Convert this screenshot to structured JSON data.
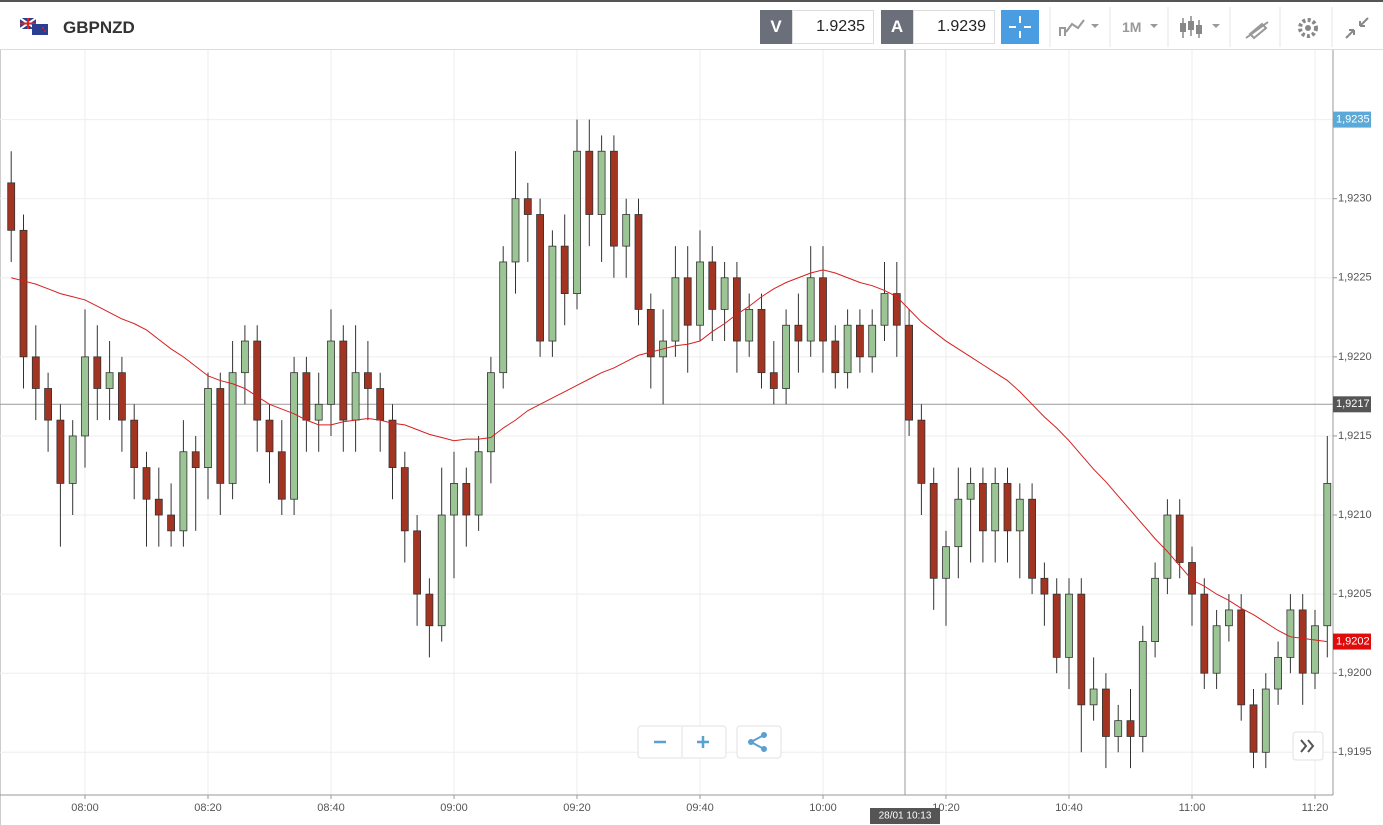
{
  "header": {
    "symbol": "GBPNZD",
    "sell": {
      "label": "V",
      "price": "1.9235"
    },
    "buy": {
      "label": "A",
      "price": "1.9239"
    },
    "timeframe": "1M"
  },
  "chart_data": {
    "type": "candlestick",
    "categories": [
      null,
      null,
      null,
      null,
      null,
      null,
      "08:00",
      null,
      null,
      null,
      null,
      null,
      null,
      null,
      null,
      null,
      "08:20",
      null,
      null,
      null,
      null,
      null,
      null,
      null,
      null,
      null,
      "08:40",
      null,
      null,
      null,
      null,
      null,
      null,
      null,
      null,
      null,
      "09:00",
      null,
      null,
      null,
      null,
      null,
      null,
      null,
      null,
      null,
      "09:20",
      null,
      null,
      null,
      null,
      null,
      null,
      null,
      null,
      null,
      "09:40",
      null,
      null,
      null,
      null,
      null,
      null,
      null,
      null,
      null,
      "10:00",
      null,
      null,
      null,
      null,
      null,
      null,
      null,
      null,
      null,
      "10:20",
      null,
      null,
      null,
      null,
      null,
      null,
      null,
      null,
      null,
      "10:40",
      null,
      null,
      null,
      null,
      null,
      null,
      null,
      null,
      null,
      "11:00",
      null,
      null,
      null,
      null,
      null,
      null,
      null,
      null,
      null,
      "11:20",
      null
    ],
    "open": [
      1.9231,
      1.9228,
      1.922,
      1.9218,
      1.9216,
      1.9212,
      1.9215,
      1.922,
      1.9218,
      1.9219,
      1.9216,
      1.9213,
      1.9211,
      1.921,
      1.9209,
      1.9214,
      1.9213,
      1.9218,
      1.9212,
      1.9219,
      1.9221,
      1.9216,
      1.9214,
      1.9211,
      1.9219,
      1.9216,
      1.9217,
      1.9221,
      1.9216,
      1.9219,
      1.9218,
      1.9216,
      1.9213,
      1.9209,
      1.9205,
      1.9203,
      1.921,
      1.9212,
      1.921,
      1.9214,
      1.9219,
      1.9226,
      1.923,
      1.9229,
      1.9221,
      1.9227,
      1.9224,
      1.9233,
      1.9229,
      1.9233,
      1.9227,
      1.9229,
      1.9223,
      1.922,
      1.9221,
      1.9225,
      1.9222,
      1.9226,
      1.9223,
      1.9225,
      1.9221,
      1.9223,
      1.9219,
      1.9218,
      1.9222,
      1.9221,
      1.9225,
      1.9221,
      1.9219,
      1.9222,
      1.922,
      1.9222,
      1.9224,
      1.9222,
      1.9216,
      1.9212,
      1.9206,
      1.9208,
      1.9211,
      1.9212,
      1.9209,
      1.9212,
      1.9209,
      1.9211,
      1.9206,
      1.9205,
      1.9201,
      1.9205,
      1.9198,
      1.9199,
      1.9196,
      1.9197,
      1.9196,
      1.9202,
      1.9206,
      1.921,
      1.9207,
      1.9205,
      1.92,
      1.9203,
      1.9204,
      1.9198,
      1.9195,
      1.9199,
      1.9201,
      1.9204,
      1.92,
      1.9203
    ],
    "high": [
      1.9233,
      1.9229,
      1.9222,
      1.9219,
      1.9217,
      1.9216,
      1.9223,
      1.9222,
      1.9221,
      1.922,
      1.9217,
      1.9214,
      1.9213,
      1.9212,
      1.9216,
      1.9215,
      1.9219,
      1.9219,
      1.9221,
      1.9222,
      1.9222,
      1.9217,
      1.9216,
      1.922,
      1.922,
      1.9219,
      1.9223,
      1.9222,
      1.9222,
      1.9221,
      1.9219,
      1.9217,
      1.9214,
      1.921,
      1.9206,
      1.9213,
      1.9214,
      1.9213,
      1.9215,
      1.922,
      1.9227,
      1.9233,
      1.9231,
      1.923,
      1.9228,
      1.9229,
      1.9235,
      1.9235,
      1.9234,
      1.9234,
      1.923,
      1.923,
      1.9224,
      1.9223,
      1.9227,
      1.9227,
      1.9228,
      1.9227,
      1.9226,
      1.9226,
      1.9224,
      1.9224,
      1.9221,
      1.9223,
      1.9224,
      1.9227,
      1.9227,
      1.9222,
      1.9223,
      1.9223,
      1.9223,
      1.9226,
      1.9226,
      1.9223,
      1.9217,
      1.9213,
      1.9209,
      1.9213,
      1.9213,
      1.9213,
      1.9213,
      1.9213,
      1.9212,
      1.9212,
      1.9207,
      1.9206,
      1.9206,
      1.9206,
      1.9201,
      1.92,
      1.9198,
      1.9199,
      1.9203,
      1.9207,
      1.9211,
      1.9211,
      1.9208,
      1.9206,
      1.9204,
      1.9205,
      1.9205,
      1.9199,
      1.92,
      1.9202,
      1.9205,
      1.9205,
      1.9204,
      1.9215
    ],
    "low": [
      1.9226,
      1.9218,
      1.9216,
      1.9214,
      1.9208,
      1.921,
      1.9213,
      1.9216,
      1.9216,
      1.9214,
      1.9211,
      1.9208,
      1.9208,
      1.9208,
      1.9208,
      1.9209,
      1.9211,
      1.921,
      1.9211,
      1.9217,
      1.9214,
      1.9212,
      1.921,
      1.921,
      1.9214,
      1.9214,
      1.9215,
      1.9214,
      1.9214,
      1.9216,
      1.9214,
      1.9211,
      1.9207,
      1.9203,
      1.9201,
      1.9202,
      1.9206,
      1.9208,
      1.9209,
      1.9212,
      1.9218,
      1.9224,
      1.9226,
      1.922,
      1.922,
      1.9222,
      1.9223,
      1.9227,
      1.9226,
      1.9225,
      1.9225,
      1.9222,
      1.9218,
      1.9217,
      1.922,
      1.9219,
      1.9221,
      1.9221,
      1.9221,
      1.9219,
      1.922,
      1.9218,
      1.9217,
      1.9217,
      1.9219,
      1.922,
      1.9219,
      1.9218,
      1.9218,
      1.9219,
      1.9219,
      1.9221,
      1.922,
      1.9215,
      1.921,
      1.9204,
      1.9203,
      1.9206,
      1.9207,
      1.9207,
      1.9207,
      1.9207,
      1.9206,
      1.9205,
      1.9203,
      1.92,
      1.9199,
      1.9195,
      1.9197,
      1.9194,
      1.9195,
      1.9194,
      1.9195,
      1.9201,
      1.9205,
      1.9206,
      1.9203,
      1.9199,
      1.9199,
      1.9202,
      1.9197,
      1.9194,
      1.9194,
      1.9198,
      1.92,
      1.9198,
      1.9199,
      1.9201
    ],
    "close": [
      1.9228,
      1.922,
      1.9218,
      1.9216,
      1.9212,
      1.9215,
      1.922,
      1.9218,
      1.9219,
      1.9216,
      1.9213,
      1.9211,
      1.921,
      1.9209,
      1.9214,
      1.9213,
      1.9218,
      1.9212,
      1.9219,
      1.9221,
      1.9216,
      1.9214,
      1.9211,
      1.9219,
      1.9216,
      1.9217,
      1.9221,
      1.9216,
      1.9219,
      1.9218,
      1.9216,
      1.9213,
      1.9209,
      1.9205,
      1.9203,
      1.921,
      1.9212,
      1.921,
      1.9214,
      1.9219,
      1.9226,
      1.923,
      1.9229,
      1.9221,
      1.9227,
      1.9224,
      1.9233,
      1.9229,
      1.9233,
      1.9227,
      1.9229,
      1.9223,
      1.922,
      1.9221,
      1.9225,
      1.9222,
      1.9226,
      1.9223,
      1.9225,
      1.9221,
      1.9223,
      1.9219,
      1.9218,
      1.9222,
      1.9221,
      1.9225,
      1.9221,
      1.9219,
      1.9222,
      1.922,
      1.9222,
      1.9224,
      1.9222,
      1.9216,
      1.9212,
      1.9206,
      1.9208,
      1.9211,
      1.9212,
      1.9209,
      1.9212,
      1.9209,
      1.9211,
      1.9206,
      1.9205,
      1.9201,
      1.9205,
      1.9198,
      1.9199,
      1.9196,
      1.9197,
      1.9196,
      1.9202,
      1.9206,
      1.921,
      1.9207,
      1.9205,
      1.92,
      1.9203,
      1.9204,
      1.9198,
      1.9195,
      1.9199,
      1.9201,
      1.9204,
      1.92,
      1.9203,
      1.9212
    ],
    "up_color": "#9cc596",
    "down_color": "#a33422",
    "ma": {
      "color": "#d62020",
      "values": [
        1.9225,
        1.92248,
        1.92246,
        1.92243,
        1.9224,
        1.92238,
        1.92236,
        1.92232,
        1.92228,
        1.92224,
        1.92221,
        1.92217,
        1.92211,
        1.92205,
        1.922,
        1.92194,
        1.92188,
        1.92185,
        1.92183,
        1.9218,
        1.92175,
        1.9217,
        1.92167,
        1.92164,
        1.9216,
        1.92157,
        1.92157,
        1.92159,
        1.9216,
        1.92161,
        1.9216,
        1.92158,
        1.92157,
        1.92154,
        1.92151,
        1.92149,
        1.92147,
        1.92148,
        1.92148,
        1.92149,
        1.92155,
        1.9216,
        1.92166,
        1.9217,
        1.92174,
        1.92178,
        1.92182,
        1.92186,
        1.9219,
        1.92193,
        1.92197,
        1.92201,
        1.92203,
        1.92205,
        1.92207,
        1.92208,
        1.9221,
        1.92216,
        1.92221,
        1.92227,
        1.92232,
        1.92238,
        1.92243,
        1.92247,
        1.9225,
        1.92253,
        1.92255,
        1.92253,
        1.9225,
        1.92247,
        1.92245,
        1.92242,
        1.92238,
        1.9223,
        1.92222,
        1.92216,
        1.9221,
        1.92205,
        1.922,
        1.92195,
        1.9219,
        1.92185,
        1.92178,
        1.9217,
        1.92162,
        1.92155,
        1.92147,
        1.92138,
        1.92129,
        1.92121,
        1.92112,
        1.92103,
        1.92094,
        1.92085,
        1.92077,
        1.92068,
        1.92059,
        1.92055,
        1.9205,
        1.92046,
        1.92041,
        1.92037,
        1.92032,
        1.92027,
        1.92023,
        1.92022,
        1.92021,
        1.9202
      ]
    },
    "ylim": [
      1.91923,
      1.92394
    ],
    "yticks": [
      {
        "value": 1.9195,
        "label": "1,9195"
      },
      {
        "value": 1.92,
        "label": "1,9200"
      },
      {
        "value": 1.9205,
        "label": "1,9205"
      },
      {
        "value": 1.921,
        "label": "1,9210"
      },
      {
        "value": 1.9215,
        "label": "1,9215"
      },
      {
        "value": 1.922,
        "label": "1,9220"
      },
      {
        "value": 1.9225,
        "label": "1,9225"
      },
      {
        "value": 1.923,
        "label": "1,9230"
      },
      {
        "value": 1.9235,
        "label": "1,9235"
      }
    ],
    "grid": true,
    "price_tags": [
      {
        "value": 1.9235,
        "label": "1,9235",
        "color": "#5aa9d8"
      },
      {
        "value": 1.9202,
        "label": "1,9202",
        "color": "#e00c0c"
      }
    ],
    "crosshair": {
      "value": 1.9217,
      "label": "1,9217",
      "time": "28/01 10:13"
    }
  }
}
